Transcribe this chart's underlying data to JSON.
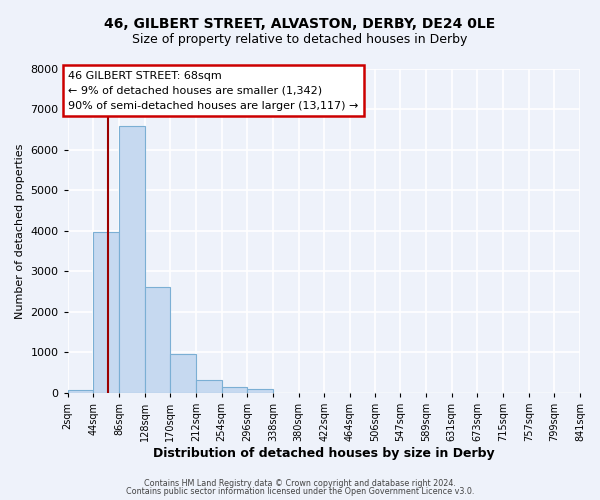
{
  "title": "46, GILBERT STREET, ALVASTON, DERBY, DE24 0LE",
  "subtitle": "Size of property relative to detached houses in Derby",
  "xlabel": "Distribution of detached houses by size in Derby",
  "ylabel": "Number of detached properties",
  "footer_line1": "Contains HM Land Registry data © Crown copyright and database right 2024.",
  "footer_line2": "Contains public sector information licensed under the Open Government Licence v3.0.",
  "bin_edges": [
    2,
    44,
    86,
    128,
    170,
    212,
    254,
    296,
    338,
    380,
    422,
    464,
    506,
    547,
    589,
    631,
    673,
    715,
    757,
    799,
    841
  ],
  "bin_labels": [
    "2sqm",
    "44sqm",
    "86sqm",
    "128sqm",
    "170sqm",
    "212sqm",
    "254sqm",
    "296sqm",
    "338sqm",
    "380sqm",
    "422sqm",
    "464sqm",
    "506sqm",
    "547sqm",
    "589sqm",
    "631sqm",
    "673sqm",
    "715sqm",
    "757sqm",
    "799sqm",
    "841sqm"
  ],
  "bar_heights": [
    60,
    3980,
    6600,
    2620,
    960,
    310,
    140,
    100,
    0,
    0,
    0,
    0,
    0,
    0,
    0,
    0,
    0,
    0,
    0,
    0
  ],
  "bar_color": "#c6d9f0",
  "bar_edgecolor": "#7bafd4",
  "property_size": 68,
  "vline_x": 68,
  "vline_color": "#9b0000",
  "annotation_title": "46 GILBERT STREET: 68sqm",
  "annotation_line1": "← 9% of detached houses are smaller (1,342)",
  "annotation_line2": "90% of semi-detached houses are larger (13,117) →",
  "ylim": [
    0,
    8000
  ],
  "yticks": [
    0,
    1000,
    2000,
    3000,
    4000,
    5000,
    6000,
    7000,
    8000
  ],
  "bg_color": "#eef2fa",
  "plot_bg_color": "#eef2fa",
  "grid_color": "#ffffff",
  "box_edgecolor": "#cc0000",
  "title_fontsize": 10,
  "subtitle_fontsize": 9
}
